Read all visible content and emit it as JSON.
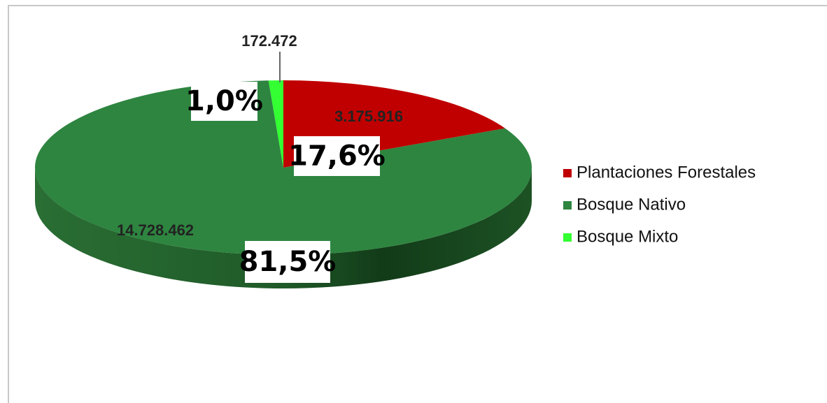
{
  "chart_data": {
    "type": "pie",
    "categories": [
      "Plantaciones Forestales",
      "Bosque Nativo",
      "Bosque Mixto"
    ],
    "values": [
      3175916,
      14728462,
      172472
    ],
    "value_labels": [
      "3.175.916",
      "14.728.462",
      "172.472"
    ],
    "percents": [
      17.6,
      81.5,
      1.0
    ],
    "percent_labels": [
      "17,6%",
      "81,5%",
      "1,0%"
    ],
    "colors": [
      "#c00000",
      "#2e8540",
      "#33ff33"
    ],
    "legend": "right"
  }
}
